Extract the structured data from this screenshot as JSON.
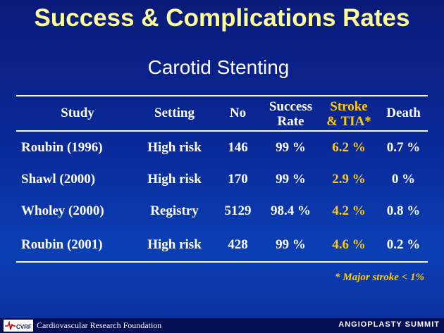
{
  "title": "Success & Complications Rates",
  "subtitle": "Carotid Stenting",
  "table": {
    "headers": {
      "study": "Study",
      "setting": "Setting",
      "no": "No",
      "rate_line1": "Success",
      "rate_line2": "Rate",
      "stroke_line1": "Stroke",
      "stroke_line2": "& TIA*",
      "death": "Death"
    },
    "rows": [
      {
        "study": "Roubin (1996)",
        "setting": "High risk",
        "no": "146",
        "rate": "99 %",
        "stroke": "6.2 %",
        "death": "0.7 %"
      },
      {
        "study": "Shawl (2000)",
        "setting": "High risk",
        "no": "170",
        "rate": "99 %",
        "stroke": "2.9 %",
        "death": "0 %"
      },
      {
        "study": "Wholey (2000)",
        "setting": "Registry",
        "no": "5129",
        "rate": "98.4 %",
        "stroke": "4.2 %",
        "death": "0.8 %"
      },
      {
        "study": "Roubin (2001)",
        "setting": "High risk",
        "no": "428",
        "rate": "99 %",
        "stroke": "4.6 %",
        "death": "0.2 %"
      }
    ]
  },
  "footnote": "* Major stroke < 1%",
  "footer": {
    "logo_text": "CVRF",
    "foundation": "Cardiovascular Research Foundation",
    "brand": "ANGIOPLASTY SUMMIT"
  },
  "colors": {
    "title": "#ffff99",
    "highlight": "#ffcc00",
    "background_top": "#0a1a7a",
    "background_bottom": "#0b3fb4"
  }
}
